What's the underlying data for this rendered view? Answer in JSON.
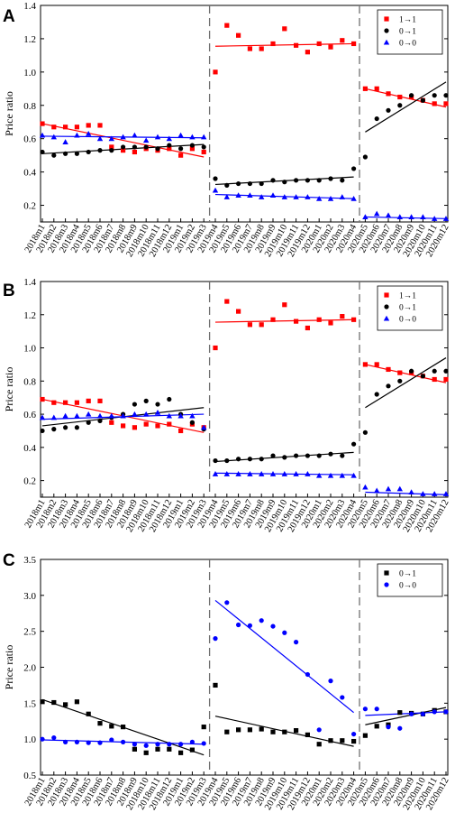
{
  "figure": {
    "colors": {
      "1→1": "#ff0000",
      "0→1": "#000000",
      "0→0": "#0000ff"
    },
    "x_ticks": [
      "2018m1",
      "2018m2",
      "2018m3",
      "2018m4",
      "2018m5",
      "2018m6",
      "2018m7",
      "2018m8",
      "2018m9",
      "2018m10",
      "2018m11",
      "2018m12",
      "2019m1",
      "2019m2",
      "2019m3",
      "2019m4",
      "2019m5",
      "2019m6",
      "2019m7",
      "2019m8",
      "2019m9",
      "2019m10",
      "2019m11",
      "2019m12",
      "2020m1",
      "2020m2",
      "2020m3",
      "2020m4",
      "2020m5",
      "2020m6",
      "2020m7",
      "2020m8",
      "2020m9",
      "2020m10",
      "2020m11",
      "2020m12"
    ]
  },
  "chart_data": [
    {
      "panel": "A",
      "type": "scatter",
      "ylabel": "Price ratio",
      "ylim": [
        0.1,
        1.4
      ],
      "yticks": [
        "0.2",
        "0.4",
        "0.6",
        "0.8",
        "1.0",
        "1.2",
        "1.4"
      ],
      "legend_position": "top-right",
      "breaks_after_index": [
        14,
        27
      ],
      "series": [
        {
          "name": "1→1",
          "marker": "square",
          "values": [
            0.69,
            0.67,
            0.67,
            0.67,
            0.68,
            0.68,
            0.55,
            0.53,
            0.52,
            0.54,
            0.53,
            0.54,
            0.5,
            0.54,
            0.52,
            1.0,
            1.28,
            1.22,
            1.14,
            1.14,
            1.17,
            1.26,
            1.16,
            1.12,
            1.17,
            1.15,
            1.19,
            1.17,
            0.9,
            0.9,
            0.87,
            0.85,
            0.85,
            0.83,
            0.81,
            0.81
          ],
          "fits": [
            {
              "x": [
                0,
                14
              ],
              "y": [
                0.69,
                0.49
              ]
            },
            {
              "x": [
                15,
                27
              ],
              "y": [
                1.155,
                1.17
              ]
            },
            {
              "x": [
                28,
                35
              ],
              "y": [
                0.9,
                0.79
              ]
            }
          ]
        },
        {
          "name": "0→1",
          "marker": "circle",
          "values": [
            0.52,
            0.5,
            0.51,
            0.51,
            0.52,
            0.53,
            0.53,
            0.55,
            0.55,
            0.55,
            0.54,
            0.56,
            0.54,
            0.56,
            0.55,
            0.36,
            0.32,
            0.33,
            0.33,
            0.33,
            0.35,
            0.34,
            0.35,
            0.35,
            0.35,
            0.36,
            0.35,
            0.42,
            0.49,
            0.72,
            0.77,
            0.8,
            0.86,
            0.83,
            0.86,
            0.86
          ],
          "fits": [
            {
              "x": [
                0,
                14
              ],
              "y": [
                0.51,
                0.565
              ]
            },
            {
              "x": [
                15,
                27
              ],
              "y": [
                0.325,
                0.37
              ]
            },
            {
              "x": [
                28,
                35
              ],
              "y": [
                0.64,
                0.94
              ]
            }
          ]
        },
        {
          "name": "0→0",
          "marker": "triangle",
          "values": [
            0.62,
            0.61,
            0.58,
            0.62,
            0.63,
            0.6,
            0.6,
            0.61,
            0.62,
            0.59,
            0.61,
            0.6,
            0.62,
            0.61,
            0.61,
            0.29,
            0.25,
            0.26,
            0.26,
            0.25,
            0.26,
            0.25,
            0.25,
            0.25,
            0.24,
            0.24,
            0.25,
            0.24,
            0.13,
            0.15,
            0.14,
            0.13,
            0.13,
            0.13,
            0.12,
            0.12
          ],
          "fits": [
            {
              "x": [
                0,
                14
              ],
              "y": [
                0.615,
                0.605
              ]
            },
            {
              "x": [
                15,
                27
              ],
              "y": [
                0.265,
                0.24
              ]
            },
            {
              "x": [
                28,
                35
              ],
              "y": [
                0.13,
                0.12
              ]
            }
          ]
        }
      ]
    },
    {
      "panel": "B",
      "type": "scatter",
      "ylabel": "Price ratio",
      "ylim": [
        0.1,
        1.4
      ],
      "yticks": [
        "0.2",
        "0.4",
        "0.6",
        "0.8",
        "1.0",
        "1.2",
        "1.4"
      ],
      "legend_position": "top-right",
      "breaks_after_index": [
        14,
        27
      ],
      "series": [
        {
          "name": "1→1",
          "marker": "square",
          "values": [
            0.69,
            0.67,
            0.67,
            0.67,
            0.68,
            0.68,
            0.55,
            0.53,
            0.52,
            0.54,
            0.53,
            0.54,
            0.5,
            0.54,
            0.52,
            1.0,
            1.28,
            1.22,
            1.14,
            1.14,
            1.17,
            1.26,
            1.16,
            1.12,
            1.17,
            1.15,
            1.19,
            1.17,
            0.9,
            0.9,
            0.87,
            0.85,
            0.85,
            0.83,
            0.81,
            0.81
          ],
          "fits": [
            {
              "x": [
                0,
                14
              ],
              "y": [
                0.69,
                0.49
              ]
            },
            {
              "x": [
                15,
                27
              ],
              "y": [
                1.155,
                1.17
              ]
            },
            {
              "x": [
                28,
                35
              ],
              "y": [
                0.9,
                0.79
              ]
            }
          ]
        },
        {
          "name": "0→1",
          "marker": "circle",
          "values": [
            0.5,
            0.51,
            0.52,
            0.52,
            0.55,
            0.56,
            0.58,
            0.6,
            0.66,
            0.68,
            0.66,
            0.69,
            0.6,
            0.55,
            0.51,
            0.32,
            0.32,
            0.33,
            0.33,
            0.33,
            0.35,
            0.34,
            0.35,
            0.35,
            0.35,
            0.36,
            0.35,
            0.42,
            0.49,
            0.72,
            0.77,
            0.8,
            0.86,
            0.83,
            0.86,
            0.86
          ],
          "fits": [
            {
              "x": [
                0,
                14
              ],
              "y": [
                0.53,
                0.64
              ]
            },
            {
              "x": [
                15,
                27
              ],
              "y": [
                0.315,
                0.37
              ]
            },
            {
              "x": [
                28,
                35
              ],
              "y": [
                0.64,
                0.94
              ]
            }
          ]
        },
        {
          "name": "0→0",
          "marker": "triangle",
          "values": [
            0.58,
            0.58,
            0.59,
            0.59,
            0.6,
            0.59,
            0.59,
            0.59,
            0.6,
            0.6,
            0.61,
            0.59,
            0.59,
            0.59,
            0.52,
            0.24,
            0.24,
            0.24,
            0.24,
            0.24,
            0.24,
            0.24,
            0.24,
            0.24,
            0.23,
            0.23,
            0.23,
            0.23,
            0.16,
            0.14,
            0.15,
            0.15,
            0.13,
            0.12,
            0.12,
            0.12
          ],
          "fits": [
            {
              "x": [
                0,
                14
              ],
              "y": [
                0.57,
                0.6
              ]
            },
            {
              "x": [
                15,
                27
              ],
              "y": [
                0.245,
                0.235
              ]
            },
            {
              "x": [
                28,
                35
              ],
              "y": [
                0.13,
                0.115
              ]
            }
          ]
        }
      ]
    },
    {
      "panel": "C",
      "type": "scatter",
      "ylabel": "Price ratio",
      "ylim": [
        0.5,
        3.5
      ],
      "yticks": [
        "0.5",
        "1.0",
        "1.5",
        "2.0",
        "2.5",
        "3.0",
        "3.5"
      ],
      "legend_position": "top-right",
      "breaks_after_index": [
        14,
        27
      ],
      "series": [
        {
          "name": "0→1",
          "marker": "square",
          "values": [
            1.52,
            1.51,
            1.48,
            1.52,
            1.35,
            1.22,
            1.18,
            1.17,
            0.86,
            0.81,
            0.86,
            0.86,
            0.81,
            0.85,
            1.17,
            1.75,
            1.1,
            1.13,
            1.13,
            1.14,
            1.1,
            1.1,
            1.12,
            1.06,
            0.93,
            0.98,
            0.98,
            0.97,
            1.05,
            1.18,
            1.2,
            1.37,
            1.36,
            1.35,
            1.4,
            1.38
          ],
          "fits": [
            {
              "x": [
                0,
                14
              ],
              "y": [
                1.55,
                0.78
              ]
            },
            {
              "x": [
                15,
                27
              ],
              "y": [
                1.32,
                0.9
              ]
            },
            {
              "x": [
                28,
                35
              ],
              "y": [
                1.2,
                1.44
              ]
            }
          ]
        },
        {
          "name": "0→0",
          "marker": "circle",
          "values": [
            1.0,
            1.02,
            0.96,
            0.96,
            0.95,
            0.95,
            0.99,
            0.96,
            0.93,
            0.91,
            0.93,
            0.93,
            0.93,
            0.96,
            0.94,
            2.4,
            2.9,
            2.59,
            2.58,
            2.65,
            2.57,
            2.48,
            2.35,
            1.9,
            1.13,
            1.81,
            1.58,
            1.07,
            1.42,
            1.42,
            1.17,
            1.15,
            1.35,
            1.35,
            1.38,
            1.38
          ],
          "fits": [
            {
              "x": [
                0,
                14
              ],
              "y": [
                0.99,
                0.93
              ]
            },
            {
              "x": [
                15,
                27
              ],
              "y": [
                2.93,
                1.37
              ]
            },
            {
              "x": [
                28,
                35
              ],
              "y": [
                1.33,
                1.38
              ]
            }
          ]
        }
      ]
    }
  ]
}
